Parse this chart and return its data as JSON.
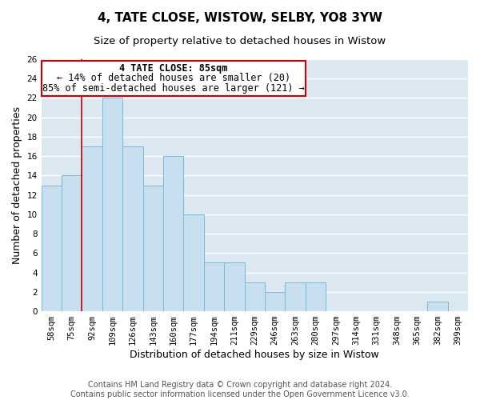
{
  "title": "4, TATE CLOSE, WISTOW, SELBY, YO8 3YW",
  "subtitle": "Size of property relative to detached houses in Wistow",
  "xlabel": "Distribution of detached houses by size in Wistow",
  "ylabel": "Number of detached properties",
  "bar_color": "#c8dff0",
  "bar_edge_color": "#7ab8d9",
  "bins": [
    "58sqm",
    "75sqm",
    "92sqm",
    "109sqm",
    "126sqm",
    "143sqm",
    "160sqm",
    "177sqm",
    "194sqm",
    "211sqm",
    "229sqm",
    "246sqm",
    "263sqm",
    "280sqm",
    "297sqm",
    "314sqm",
    "331sqm",
    "348sqm",
    "365sqm",
    "382sqm",
    "399sqm"
  ],
  "values": [
    13,
    14,
    17,
    22,
    17,
    13,
    16,
    10,
    5,
    5,
    3,
    2,
    3,
    3,
    0,
    0,
    0,
    0,
    0,
    1,
    0
  ],
  "ylim": [
    0,
    26
  ],
  "yticks": [
    0,
    2,
    4,
    6,
    8,
    10,
    12,
    14,
    16,
    18,
    20,
    22,
    24,
    26
  ],
  "annotation_title": "4 TATE CLOSE: 85sqm",
  "annotation_line1": "← 14% of detached houses are smaller (20)",
  "annotation_line2": "85% of semi-detached houses are larger (121) →",
  "footer_line1": "Contains HM Land Registry data © Crown copyright and database right 2024.",
  "footer_line2": "Contains public sector information licensed under the Open Government Licence v3.0.",
  "background_color": "#dce8f0",
  "grid_color": "#ffffff",
  "red_line_color": "#cc0000",
  "title_fontsize": 11,
  "subtitle_fontsize": 9.5,
  "axis_label_fontsize": 9,
  "tick_fontsize": 7.5,
  "footer_fontsize": 7,
  "annotation_fontsize": 8.5,
  "property_line_x": 1.47
}
